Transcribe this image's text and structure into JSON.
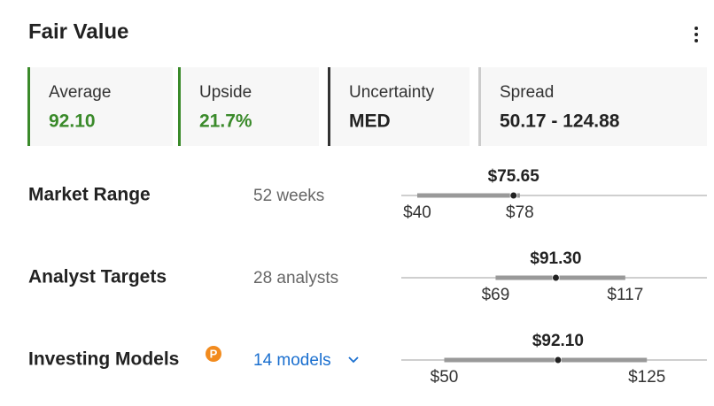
{
  "header": {
    "title": "Fair Value"
  },
  "cards": [
    {
      "label": "Average",
      "value": "92.10",
      "accent": "#3a8a2a",
      "value_color": "#3a8a2a"
    },
    {
      "label": "Upside",
      "value": "21.7%",
      "accent": "#3a8a2a",
      "value_color": "#3a8a2a"
    },
    {
      "label": "Uncertainty",
      "value": "MED",
      "accent": "#333333",
      "value_color": "#222222"
    },
    {
      "label": "Spread",
      "value": "50.17 - 124.88",
      "accent": "#cccccc",
      "value_color": "#222222"
    }
  ],
  "rows": [
    {
      "label": "Market Range",
      "detail": "52 weeks",
      "current": {
        "value": 75.65,
        "label": "$75.65"
      },
      "low": {
        "value": 40,
        "label": "$40"
      },
      "high": {
        "value": 78,
        "label": "$78"
      }
    },
    {
      "label": "Analyst Targets",
      "detail": "28 analysts",
      "current": {
        "value": 91.3,
        "label": "$91.30"
      },
      "low": {
        "value": 69,
        "label": "$69"
      },
      "high": {
        "value": 117,
        "label": "$117"
      }
    },
    {
      "label": "Investing Models",
      "badge": "P",
      "detail": "14 models",
      "current": {
        "value": 92.1,
        "label": "$92.10"
      },
      "low": {
        "value": 50,
        "label": "$50"
      },
      "high": {
        "value": 125,
        "label": "$125"
      }
    }
  ]
}
